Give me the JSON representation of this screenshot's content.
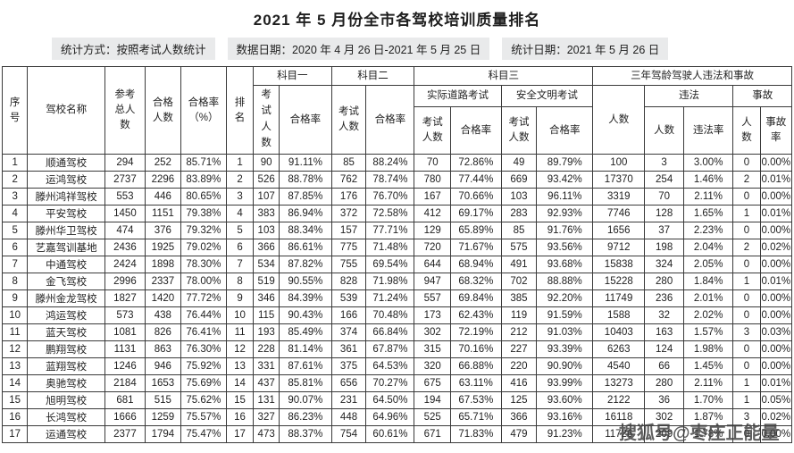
{
  "title": "2021 年 5 月份全市各驾校培训质量排名",
  "meta": {
    "stat_method": "统计方式：按照考试人数统计",
    "data_date": "数据日期：2020 年 4 月 26 日-2021 年 5 月 25 日",
    "stat_date": "统计日期：2021 年 5 月 26 日"
  },
  "table": {
    "headers": {
      "seq": "序\n号",
      "school": "驾校名称",
      "total": "参考\n总人\n数",
      "qualified": "合格\n人数",
      "pass_rate_pct": "合格率\n（%）",
      "rank": "排\n名",
      "subject1": "科目一",
      "subject2": "科目二",
      "subject3": "科目三",
      "three_year": "三年驾龄驾驶人违法和事故",
      "road_test": "实际道路考试",
      "safety_test": "安全文明考试",
      "s1_exam_count": "考\n试\n人\n数",
      "s1_pass_rate": "合格率",
      "s2_exam_count": "考试\n人数",
      "s2_pass_rate": "合格率",
      "road_exam_count": "考试\n人数",
      "road_pass_rate": "合格率",
      "safety_exam_count": "考试\n人数",
      "safety_pass_rate": "合格率",
      "driver_count": "人数",
      "violation": "违法",
      "accident": "事故",
      "violation_count": "人数",
      "violation_rate": "违法率",
      "accident_count": "人\n数",
      "accident_rate": "事故率"
    },
    "rows": [
      [
        "1",
        "顺通驾校",
        "294",
        "252",
        "85.71%",
        "1",
        "90",
        "91.11%",
        "85",
        "88.24%",
        "70",
        "72.86%",
        "49",
        "89.79%",
        "100",
        "3",
        "3.00%",
        "0",
        "0.00%"
      ],
      [
        "2",
        "运鸿驾校",
        "2737",
        "2296",
        "83.89%",
        "2",
        "526",
        "88.78%",
        "762",
        "78.74%",
        "780",
        "77.44%",
        "669",
        "93.42%",
        "17370",
        "254",
        "1.46%",
        "2",
        "0.01%"
      ],
      [
        "3",
        "滕州鸿祥驾校",
        "553",
        "446",
        "80.65%",
        "3",
        "107",
        "87.85%",
        "176",
        "76.70%",
        "167",
        "70.66%",
        "103",
        "96.11%",
        "3319",
        "70",
        "2.11%",
        "0",
        "0.00%"
      ],
      [
        "4",
        "平安驾校",
        "1450",
        "1151",
        "79.38%",
        "4",
        "383",
        "86.94%",
        "372",
        "72.58%",
        "412",
        "69.17%",
        "283",
        "92.93%",
        "7746",
        "128",
        "1.65%",
        "1",
        "0.01%"
      ],
      [
        "5",
        "滕州华卫驾校",
        "474",
        "376",
        "79.32%",
        "5",
        "103",
        "88.34%",
        "157",
        "77.71%",
        "129",
        "65.89%",
        "85",
        "91.76%",
        "1656",
        "37",
        "2.23%",
        "0",
        "0.00%"
      ],
      [
        "6",
        "艺嘉驾训基地",
        "2436",
        "1925",
        "79.02%",
        "6",
        "366",
        "86.61%",
        "775",
        "71.48%",
        "720",
        "71.67%",
        "575",
        "93.56%",
        "9712",
        "198",
        "2.04%",
        "2",
        "0.02%"
      ],
      [
        "7",
        "中通驾校",
        "2424",
        "1898",
        "78.30%",
        "7",
        "534",
        "87.82%",
        "755",
        "69.54%",
        "644",
        "68.94%",
        "491",
        "93.68%",
        "15838",
        "324",
        "2.05%",
        "0",
        "0.00%"
      ],
      [
        "8",
        "金飞驾校",
        "2996",
        "2337",
        "78.00%",
        "8",
        "519",
        "90.55%",
        "828",
        "71.98%",
        "947",
        "68.32%",
        "702",
        "88.88%",
        "15228",
        "280",
        "1.84%",
        "1",
        "0.01%"
      ],
      [
        "9",
        "滕州金龙驾校",
        "1827",
        "1420",
        "77.72%",
        "9",
        "346",
        "84.39%",
        "539",
        "71.24%",
        "557",
        "69.84%",
        "385",
        "92.20%",
        "11749",
        "236",
        "2.01%",
        "0",
        "0.00%"
      ],
      [
        "10",
        "鸿运驾校",
        "573",
        "438",
        "76.44%",
        "10",
        "115",
        "90.43%",
        "166",
        "70.48%",
        "173",
        "62.43%",
        "119",
        "91.59%",
        "1588",
        "32",
        "2.02%",
        "0",
        "0.00%"
      ],
      [
        "11",
        "蓝天驾校",
        "1081",
        "826",
        "76.41%",
        "11",
        "193",
        "85.49%",
        "374",
        "66.84%",
        "302",
        "72.19%",
        "212",
        "91.03%",
        "10403",
        "163",
        "1.57%",
        "3",
        "0.03%"
      ],
      [
        "12",
        "鹏翔驾校",
        "1131",
        "863",
        "76.30%",
        "12",
        "228",
        "81.14%",
        "361",
        "67.87%",
        "315",
        "70.16%",
        "227",
        "93.39%",
        "6263",
        "124",
        "1.98%",
        "0",
        "0.00%"
      ],
      [
        "13",
        "蓝翔驾校",
        "1246",
        "946",
        "75.92%",
        "13",
        "331",
        "87.61%",
        "375",
        "64.53%",
        "320",
        "66.88%",
        "220",
        "90.90%",
        "4540",
        "66",
        "1.45%",
        "0",
        "0.00%"
      ],
      [
        "14",
        "奥驰驾校",
        "2184",
        "1653",
        "75.69%",
        "14",
        "437",
        "85.81%",
        "656",
        "70.27%",
        "675",
        "63.11%",
        "416",
        "93.99%",
        "13273",
        "280",
        "2.11%",
        "1",
        "0.01%"
      ],
      [
        "15",
        "旭明驾校",
        "681",
        "515",
        "75.62%",
        "15",
        "131",
        "90.07%",
        "231",
        "64.50%",
        "194",
        "67.53%",
        "125",
        "93.60%",
        "2122",
        "36",
        "1.70%",
        "1",
        "0.05%"
      ],
      [
        "16",
        "长鸿驾校",
        "1666",
        "1259",
        "75.57%",
        "16",
        "327",
        "86.23%",
        "448",
        "64.96%",
        "525",
        "65.71%",
        "366",
        "93.16%",
        "16118",
        "302",
        "1.87%",
        "3",
        "0.02%"
      ],
      [
        "17",
        "运通驾校",
        "2377",
        "1794",
        "75.47%",
        "17",
        "473",
        "88.37%",
        "754",
        "60.61%",
        "671",
        "71.83%",
        "479",
        "91.23%",
        "11726",
        "209",
        "1.78%",
        "0",
        "0.00%"
      ]
    ]
  },
  "watermark": "搜狐号@枣庄正能量"
}
